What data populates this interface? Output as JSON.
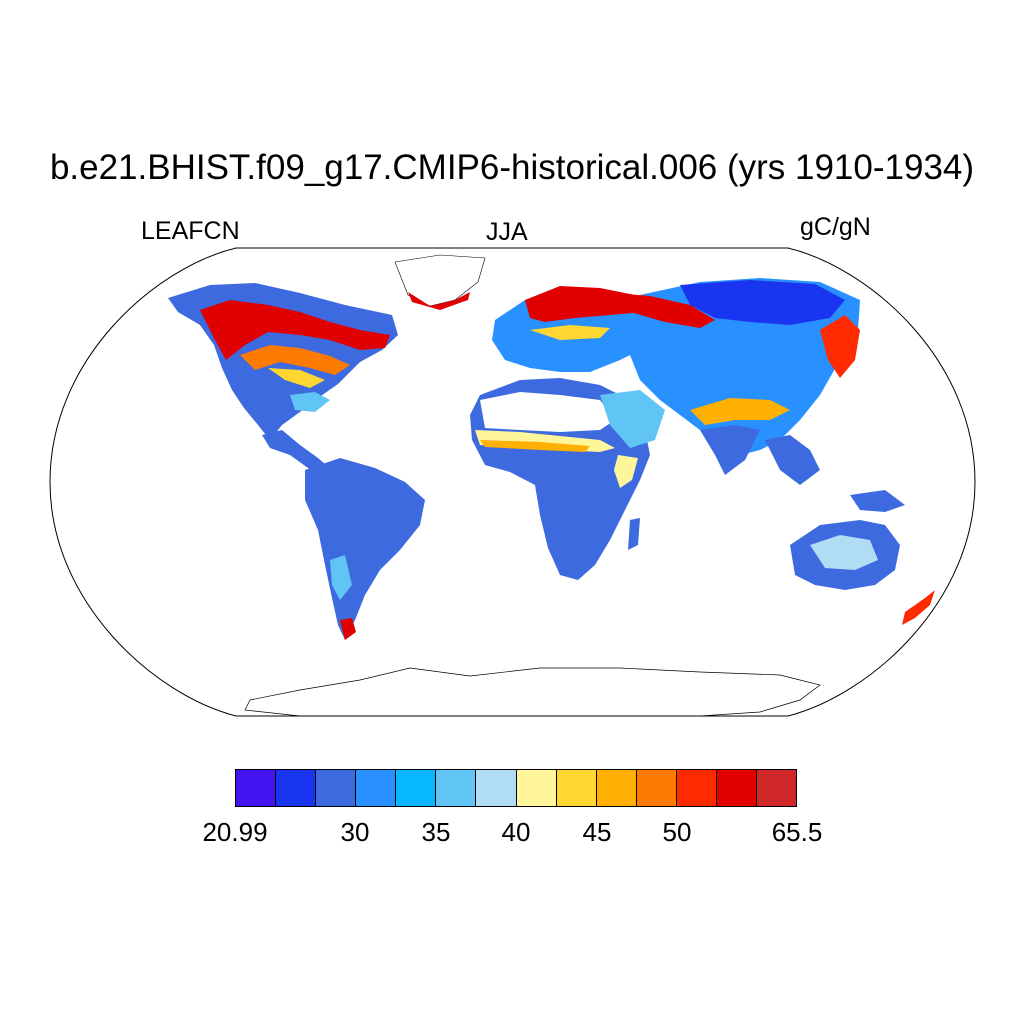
{
  "title": "b.e21.BHIST.f09_g17.CMIP6-historical.006 (yrs 1910-1934)",
  "left_label": "LEAFCN",
  "center_label": "JJA",
  "right_label": "gC/gN",
  "colorbar": {
    "colors": [
      "#4414f0",
      "#1a35f0",
      "#3e6ae0",
      "#2890ff",
      "#08b8ff",
      "#60c4f4",
      "#b0dcf4",
      "#fff59a",
      "#ffd632",
      "#ffb000",
      "#ff7a00",
      "#ff2a00",
      "#e00000",
      "#d02828"
    ],
    "tick_labels": [
      "20.99",
      "30",
      "35",
      "40",
      "45",
      "50",
      "65.5"
    ]
  },
  "projection": "Robinson",
  "variable": "LEAFCN",
  "season": "JJA",
  "units": "gC/gN"
}
